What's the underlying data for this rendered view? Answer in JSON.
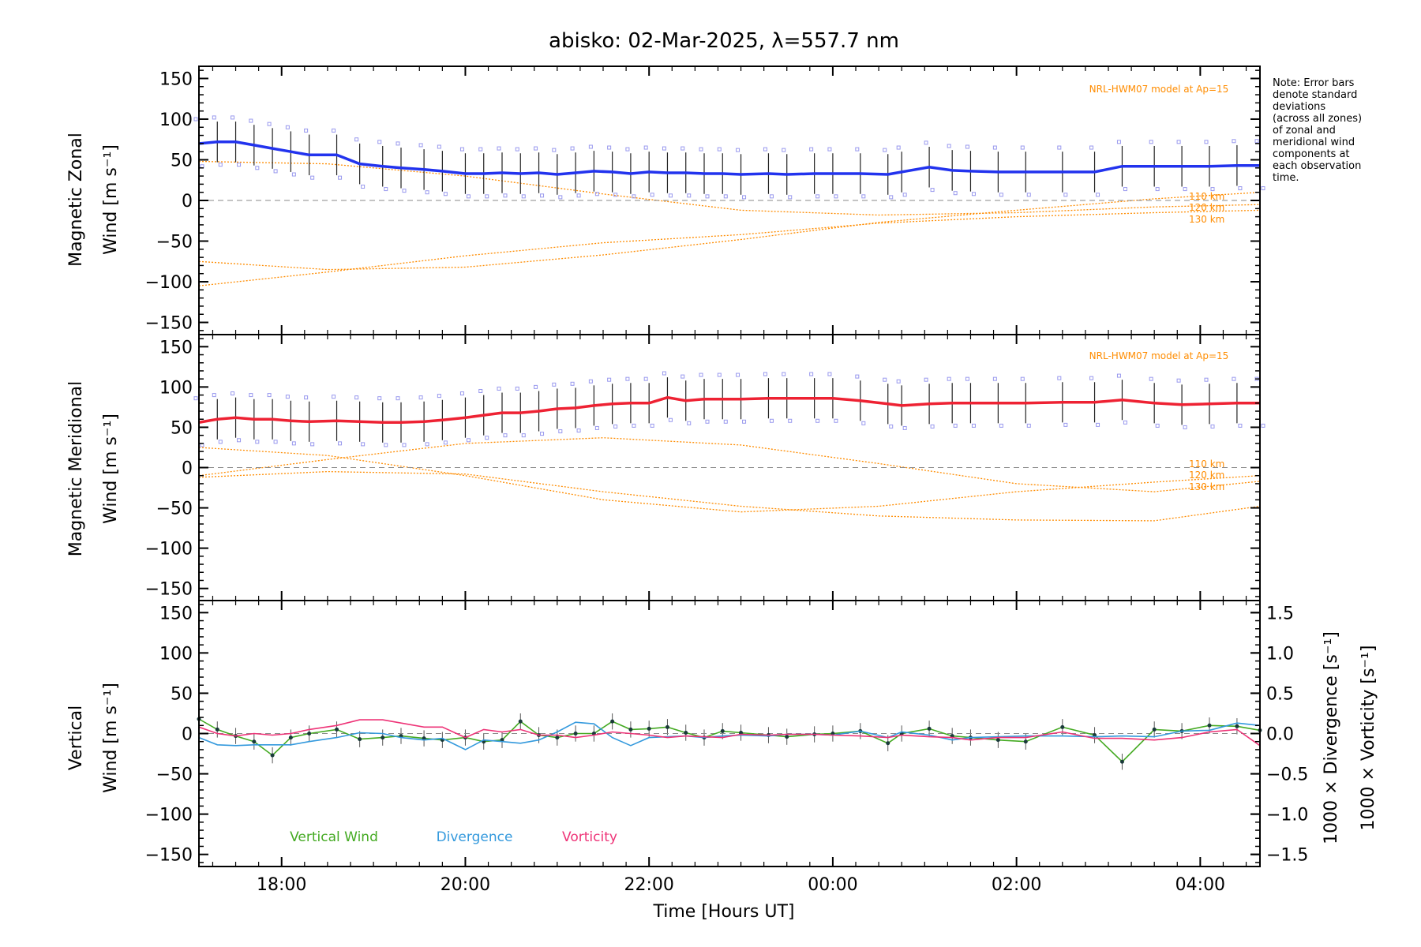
{
  "title": "abisko: 02-Mar-2025, λ=557.7 nm",
  "x_axis": {
    "label": "Time [Hours UT]",
    "range": [
      17.1,
      28.65
    ],
    "tick_values": [
      18,
      20,
      22,
      24,
      26,
      28
    ],
    "tick_labels": [
      "18:00",
      "20:00",
      "22:00",
      "00:00",
      "02:00",
      "04:00"
    ]
  },
  "note": [
    "Note: Error bars",
    "denote standard",
    "deviations",
    "(across all zones)",
    "of zonal and",
    "meridional wind",
    "components at",
    "each observation",
    "time."
  ],
  "model_label": "NRL-HWM07 model at Ap=15",
  "model_heights": [
    "110 km",
    "120 km",
    "130 km"
  ],
  "colors": {
    "zonal": "#2233ee",
    "meridional": "#ee2233",
    "vertical": "#44aa22",
    "divergence": "#3399dd",
    "vorticity": "#ee3377",
    "model": "#ff8c00",
    "zone_points": "#9999ee",
    "zero_line": "#888888"
  },
  "chart_data": [
    {
      "type": "line",
      "panel": "zonal",
      "ylabel_line1": "Magnetic Zonal",
      "ylabel_line2": "Wind",
      "ylabel_units": "[m s⁻¹]",
      "ylim": [
        -165,
        165
      ],
      "yticks": [
        150,
        100,
        50,
        0,
        -50,
        -100,
        -150
      ],
      "grid": false,
      "series": [
        {
          "x": [
            17.1,
            17.3,
            17.5,
            17.7,
            17.9,
            18.1,
            18.3,
            18.6,
            18.85,
            19.1,
            19.3,
            19.55,
            19.75,
            20.0,
            20.2,
            20.4,
            20.6,
            20.8,
            21.0,
            21.2,
            21.4,
            21.6,
            21.8,
            22.0,
            22.2,
            22.4,
            22.6,
            22.8,
            23.0,
            23.3,
            23.5,
            23.8,
            24.0,
            24.3,
            24.6,
            24.75,
            25.05,
            25.3,
            25.5,
            25.8,
            26.1,
            26.5,
            26.85,
            27.15,
            27.5,
            27.8,
            28.1,
            28.4,
            28.65
          ],
          "values": [
            70,
            72,
            72,
            68,
            64,
            60,
            56,
            56,
            45,
            42,
            40,
            38,
            36,
            33,
            33,
            34,
            33,
            34,
            32,
            34,
            36,
            35,
            33,
            35,
            34,
            34,
            33,
            33,
            32,
            33,
            32,
            33,
            33,
            33,
            32,
            35,
            41,
            37,
            36,
            35,
            35,
            35,
            35,
            42,
            42,
            42,
            42,
            43,
            43
          ]
        }
      ],
      "models": [
        {
          "x": [
            17.1,
            18.5,
            20.0,
            21.5,
            23.0,
            24.5,
            26.0,
            27.5,
            28.65
          ],
          "values": [
            -75,
            -85,
            -82,
            -67,
            -48,
            -27,
            -12,
            2,
            10
          ]
        },
        {
          "x": [
            17.1,
            18.5,
            20.0,
            21.5,
            23.0,
            24.5,
            26.0,
            27.5,
            28.65
          ],
          "values": [
            -105,
            -88,
            -68,
            -52,
            -42,
            -28,
            -20,
            -15,
            -12
          ]
        },
        {
          "x": [
            17.1,
            18.5,
            20.0,
            21.5,
            23.0,
            24.5,
            26.0,
            27.5,
            28.65
          ],
          "values": [
            48,
            45,
            30,
            8,
            -12,
            -18,
            -15,
            -8,
            -5
          ]
        }
      ]
    },
    {
      "type": "line",
      "panel": "meridional",
      "ylabel_line1": "Magnetic Meridional",
      "ylabel_line2": "Wind",
      "ylabel_units": "[m s⁻¹]",
      "ylim": [
        -165,
        165
      ],
      "yticks": [
        150,
        100,
        50,
        0,
        -50,
        -100,
        -150
      ],
      "grid": false,
      "series": [
        {
          "x": [
            17.1,
            17.3,
            17.5,
            17.7,
            17.9,
            18.1,
            18.3,
            18.6,
            18.85,
            19.1,
            19.3,
            19.55,
            19.75,
            20.0,
            20.2,
            20.4,
            20.6,
            20.8,
            21.0,
            21.2,
            21.4,
            21.6,
            21.8,
            22.0,
            22.2,
            22.4,
            22.6,
            22.8,
            23.0,
            23.3,
            23.5,
            23.8,
            24.0,
            24.3,
            24.6,
            24.75,
            25.05,
            25.3,
            25.5,
            25.8,
            26.1,
            26.5,
            26.85,
            27.15,
            27.5,
            27.8,
            28.1,
            28.4,
            28.65
          ],
          "values": [
            56,
            60,
            62,
            60,
            60,
            58,
            57,
            58,
            57,
            56,
            56,
            57,
            59,
            62,
            65,
            68,
            68,
            70,
            73,
            74,
            77,
            79,
            80,
            80,
            87,
            83,
            85,
            85,
            85,
            86,
            86,
            86,
            86,
            83,
            79,
            77,
            79,
            80,
            80,
            80,
            80,
            81,
            81,
            84,
            80,
            78,
            79,
            80,
            80
          ]
        }
      ],
      "models": [
        {
          "x": [
            17.1,
            18.5,
            20.0,
            21.5,
            23.0,
            24.5,
            26.0,
            27.5,
            28.65
          ],
          "values": [
            -10,
            10,
            30,
            37,
            28,
            5,
            -20,
            -30,
            -17
          ]
        },
        {
          "x": [
            17.1,
            18.5,
            20.0,
            21.5,
            23.0,
            24.5,
            26.0,
            27.5,
            28.65
          ],
          "values": [
            25,
            15,
            -10,
            -40,
            -55,
            -48,
            -30,
            -18,
            -10
          ]
        },
        {
          "x": [
            17.1,
            18.5,
            20.0,
            21.5,
            23.0,
            24.5,
            26.0,
            27.5,
            28.65
          ],
          "values": [
            -12,
            -5,
            -8,
            -30,
            -48,
            -60,
            -65,
            -66,
            -48
          ]
        }
      ]
    },
    {
      "type": "line",
      "panel": "vertical",
      "ylabel_line1": "Vertical",
      "ylabel_line2": "Wind",
      "ylabel_units": "[m s⁻¹]",
      "right_label_div": "1000 × Divergence [s⁻¹]",
      "right_label_vort": "1000 × Vorticity [s⁻¹]",
      "ylim": [
        -165,
        165
      ],
      "yticks": [
        150,
        100,
        50,
        0,
        -50,
        -100,
        -150
      ],
      "y2lim": [
        -1.65,
        1.65
      ],
      "y2ticks": [
        1.5,
        1.0,
        0.5,
        0.0,
        -0.5,
        -1.0,
        -1.5
      ],
      "y2tick_labels": [
        "1.5",
        "1.0",
        "0.5",
        "0.0",
        "−0.5",
        "−1.0",
        "−1.5"
      ],
      "grid": false,
      "legend_entries": [
        "Vertical Wind",
        "Divergence",
        "Vorticity"
      ],
      "series": [
        {
          "name": "Vertical Wind",
          "x": [
            17.1,
            17.3,
            17.5,
            17.7,
            17.9,
            18.1,
            18.3,
            18.6,
            18.85,
            19.1,
            19.3,
            19.55,
            19.75,
            20.0,
            20.2,
            20.4,
            20.6,
            20.8,
            21.0,
            21.2,
            21.4,
            21.6,
            21.8,
            22.0,
            22.2,
            22.4,
            22.6,
            22.8,
            23.0,
            23.3,
            23.5,
            23.8,
            24.0,
            24.3,
            24.6,
            24.75,
            25.05,
            25.3,
            25.5,
            25.8,
            26.1,
            26.5,
            26.85,
            27.15,
            27.5,
            27.8,
            28.1,
            28.4,
            28.65
          ],
          "values": [
            18,
            5,
            -3,
            -10,
            -27,
            -5,
            0,
            5,
            -7,
            -5,
            -3,
            -6,
            -8,
            -5,
            -10,
            -8,
            15,
            -2,
            -5,
            0,
            0,
            15,
            5,
            6,
            8,
            1,
            -5,
            3,
            1,
            -2,
            -4,
            -1,
            0,
            3,
            -12,
            0,
            6,
            -3,
            -5,
            -8,
            -10,
            8,
            -2,
            -35,
            5,
            3,
            10,
            9,
            4
          ]
        },
        {
          "name": "Divergence",
          "x": [
            17.1,
            17.3,
            17.5,
            17.7,
            17.9,
            18.1,
            18.3,
            18.6,
            18.85,
            19.1,
            19.3,
            19.55,
            19.75,
            20.0,
            20.2,
            20.4,
            20.6,
            20.8,
            21.0,
            21.2,
            21.4,
            21.6,
            21.8,
            22.0,
            22.2,
            22.4,
            22.6,
            22.8,
            23.0,
            23.3,
            23.5,
            23.8,
            24.0,
            24.3,
            24.6,
            24.75,
            25.05,
            25.3,
            25.5,
            25.8,
            26.1,
            26.5,
            26.85,
            27.15,
            27.5,
            27.8,
            28.1,
            28.4,
            28.65
          ],
          "values": [
            -0.05,
            -0.14,
            -0.15,
            -0.14,
            -0.14,
            -0.14,
            -0.1,
            -0.05,
            0.01,
            0.0,
            -0.05,
            -0.08,
            -0.06,
            -0.2,
            -0.08,
            -0.1,
            -0.12,
            -0.08,
            0.02,
            0.14,
            0.12,
            -0.05,
            -0.15,
            -0.05,
            -0.04,
            -0.03,
            -0.05,
            -0.03,
            -0.02,
            -0.03,
            -0.01,
            -0.01,
            -0.02,
            0.03,
            -0.05,
            0.02,
            -0.02,
            -0.08,
            -0.05,
            -0.04,
            -0.03,
            -0.03,
            -0.04,
            -0.03,
            -0.04,
            0.03,
            0.04,
            0.13,
            0.1
          ]
        },
        {
          "name": "Vorticity",
          "x": [
            17.1,
            17.3,
            17.5,
            17.7,
            17.9,
            18.1,
            18.3,
            18.6,
            18.85,
            19.1,
            19.3,
            19.55,
            19.75,
            20.0,
            20.2,
            20.4,
            20.6,
            20.8,
            21.0,
            21.2,
            21.4,
            21.6,
            21.8,
            22.0,
            22.2,
            22.4,
            22.6,
            22.8,
            23.0,
            23.3,
            23.5,
            23.8,
            24.0,
            24.3,
            24.6,
            24.75,
            25.05,
            25.3,
            25.5,
            25.8,
            26.1,
            26.5,
            26.85,
            27.15,
            27.5,
            27.8,
            28.1,
            28.4,
            28.65
          ],
          "values": [
            0.08,
            0.0,
            -0.03,
            0.0,
            -0.02,
            0.0,
            0.05,
            0.1,
            0.17,
            0.17,
            0.13,
            0.08,
            0.08,
            -0.05,
            0.05,
            0.02,
            0.05,
            -0.02,
            -0.02,
            -0.05,
            -0.02,
            0.02,
            0.0,
            -0.02,
            -0.05,
            -0.03,
            -0.04,
            -0.05,
            -0.01,
            -0.02,
            -0.01,
            -0.01,
            -0.02,
            -0.03,
            -0.05,
            -0.02,
            -0.04,
            -0.05,
            -0.08,
            -0.05,
            -0.05,
            0.02,
            -0.06,
            -0.06,
            -0.08,
            -0.05,
            0.02,
            0.05,
            -0.15
          ]
        }
      ]
    }
  ]
}
